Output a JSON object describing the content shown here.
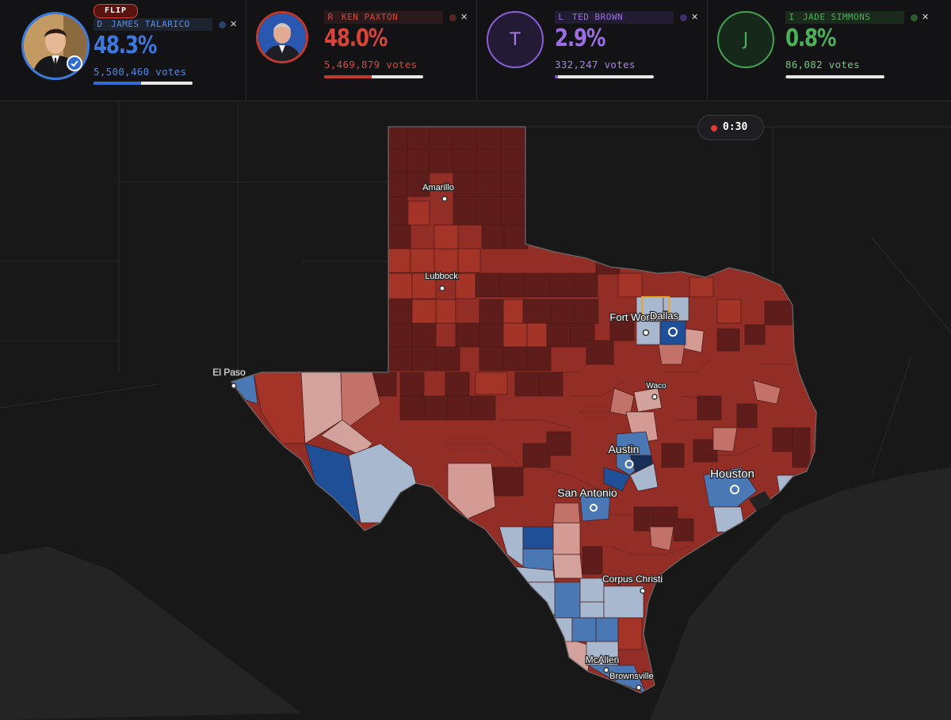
{
  "candidates": [
    {
      "party": "D",
      "name": "JAMES TALARICO",
      "pct": "48.3%",
      "votes": "5,500,460 votes",
      "share": 0.483,
      "color": "#2f6bd0",
      "winner": true,
      "badge": "FLIP"
    },
    {
      "party": "R",
      "name": "KEN PAXTON",
      "pct": "48.0%",
      "votes": "5,469,879 votes",
      "share": 0.48,
      "color": "#d6453a"
    },
    {
      "party": "L",
      "name": "TED BROWN",
      "pct": "2.9%",
      "votes": "332,247 votes",
      "share": 0.029,
      "color": "#9b6fe3",
      "avatar_letter": "T"
    },
    {
      "party": "I",
      "name": "JADE SIMMONS",
      "pct": "0.8%",
      "votes": "86,082 votes",
      "share": 0.008,
      "color": "#4caf5a",
      "avatar_letter": "J"
    }
  ],
  "close_glyph": "✕",
  "timer": {
    "label": "0:30"
  },
  "cities": [
    {
      "name": "Amarillo"
    },
    {
      "name": "Lubbock"
    },
    {
      "name": "Fort Worth"
    },
    {
      "name": "Dallas"
    },
    {
      "name": "El Paso"
    },
    {
      "name": "Waco"
    },
    {
      "name": "Austin"
    },
    {
      "name": "Houston"
    },
    {
      "name": "San Antonio"
    },
    {
      "name": "Corpus Christi"
    },
    {
      "name": "McAllen"
    },
    {
      "name": "Brownsville"
    }
  ],
  "colors": {
    "dem_strong": "#1f4f96",
    "dem": "#4a78b4",
    "dem_lean": "#a8b8cf",
    "rep_lean": "#d49a94",
    "rep": "#a8322a",
    "rep_strong": "#6e1f1c"
  }
}
